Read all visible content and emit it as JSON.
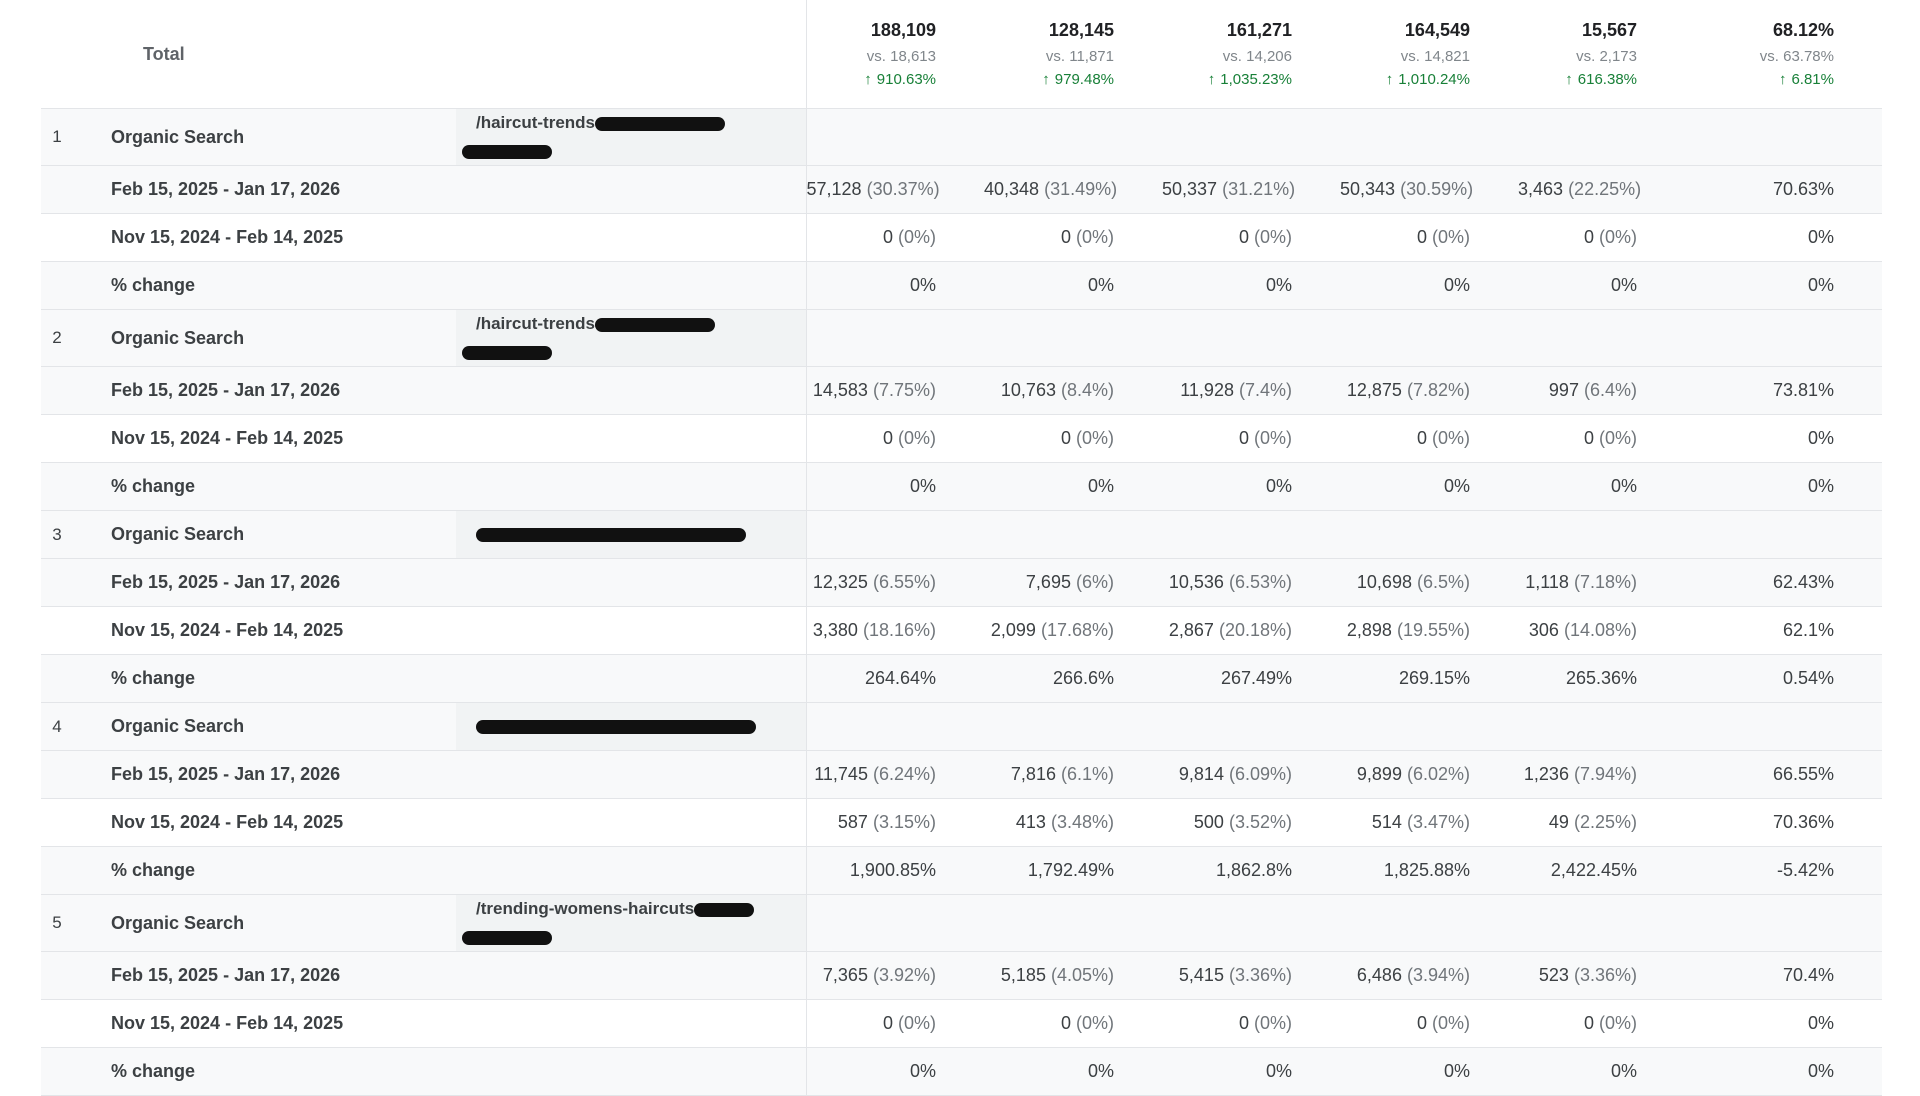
{
  "total": {
    "label": "Total",
    "columns": [
      {
        "value": "188,109",
        "vs": "vs. 18,613",
        "change": "910.63%"
      },
      {
        "value": "128,145",
        "vs": "vs. 11,871",
        "change": "979.48%"
      },
      {
        "value": "161,271",
        "vs": "vs. 14,206",
        "change": "1,035.23%"
      },
      {
        "value": "164,549",
        "vs": "vs. 14,821",
        "change": "1,010.24%"
      },
      {
        "value": "15,567",
        "vs": "vs. 2,173",
        "change": "616.38%"
      },
      {
        "value": "68.12%",
        "vs": "vs. 63.78%",
        "change": "6.81%"
      }
    ]
  },
  "groups": [
    {
      "index": "1",
      "channel": "Organic Search",
      "page": "/haircut-trends",
      "rows": [
        {
          "label": "Feb 15, 2025 - Jan 17, 2026",
          "cells": [
            [
              "57,128",
              "(30.37%)"
            ],
            [
              "40,348",
              "(31.49%)"
            ],
            [
              "50,337",
              "(31.21%)"
            ],
            [
              "50,343",
              "(30.59%)"
            ],
            [
              "3,463",
              "(22.25%)"
            ],
            [
              "70.63%",
              ""
            ]
          ]
        },
        {
          "label": "Nov 15, 2024 - Feb 14, 2025",
          "cells": [
            [
              "0",
              "(0%)"
            ],
            [
              "0",
              "(0%)"
            ],
            [
              "0",
              "(0%)"
            ],
            [
              "0",
              "(0%)"
            ],
            [
              "0",
              "(0%)"
            ],
            [
              "0%",
              ""
            ]
          ]
        },
        {
          "label": "% change",
          "cells": [
            [
              "0%",
              ""
            ],
            [
              "0%",
              ""
            ],
            [
              "0%",
              ""
            ],
            [
              "0%",
              ""
            ],
            [
              "0%",
              ""
            ],
            [
              "0%",
              ""
            ]
          ]
        }
      ]
    },
    {
      "index": "2",
      "channel": "Organic Search",
      "page": "/haircut-trends",
      "rows": [
        {
          "label": "Feb 15, 2025 - Jan 17, 2026",
          "cells": [
            [
              "14,583",
              "(7.75%)"
            ],
            [
              "10,763",
              "(8.4%)"
            ],
            [
              "11,928",
              "(7.4%)"
            ],
            [
              "12,875",
              "(7.82%)"
            ],
            [
              "997",
              "(6.4%)"
            ],
            [
              "73.81%",
              ""
            ]
          ]
        },
        {
          "label": "Nov 15, 2024 - Feb 14, 2025",
          "cells": [
            [
              "0",
              "(0%)"
            ],
            [
              "0",
              "(0%)"
            ],
            [
              "0",
              "(0%)"
            ],
            [
              "0",
              "(0%)"
            ],
            [
              "0",
              "(0%)"
            ],
            [
              "0%",
              ""
            ]
          ]
        },
        {
          "label": "% change",
          "cells": [
            [
              "0%",
              ""
            ],
            [
              "0%",
              ""
            ],
            [
              "0%",
              ""
            ],
            [
              "0%",
              ""
            ],
            [
              "0%",
              ""
            ],
            [
              "0%",
              ""
            ]
          ]
        }
      ]
    },
    {
      "index": "3",
      "channel": "Organic Search",
      "page": "",
      "rows": [
        {
          "label": "Feb 15, 2025 - Jan 17, 2026",
          "cells": [
            [
              "12,325",
              "(6.55%)"
            ],
            [
              "7,695",
              "(6%)"
            ],
            [
              "10,536",
              "(6.53%)"
            ],
            [
              "10,698",
              "(6.5%)"
            ],
            [
              "1,118",
              "(7.18%)"
            ],
            [
              "62.43%",
              ""
            ]
          ]
        },
        {
          "label": "Nov 15, 2024 - Feb 14, 2025",
          "cells": [
            [
              "3,380",
              "(18.16%)"
            ],
            [
              "2,099",
              "(17.68%)"
            ],
            [
              "2,867",
              "(20.18%)"
            ],
            [
              "2,898",
              "(19.55%)"
            ],
            [
              "306",
              "(14.08%)"
            ],
            [
              "62.1%",
              ""
            ]
          ]
        },
        {
          "label": "% change",
          "cells": [
            [
              "264.64%",
              ""
            ],
            [
              "266.6%",
              ""
            ],
            [
              "267.49%",
              ""
            ],
            [
              "269.15%",
              ""
            ],
            [
              "265.36%",
              ""
            ],
            [
              "0.54%",
              ""
            ]
          ]
        }
      ]
    },
    {
      "index": "4",
      "channel": "Organic Search",
      "page": "",
      "rows": [
        {
          "label": "Feb 15, 2025 - Jan 17, 2026",
          "cells": [
            [
              "11,745",
              "(6.24%)"
            ],
            [
              "7,816",
              "(6.1%)"
            ],
            [
              "9,814",
              "(6.09%)"
            ],
            [
              "9,899",
              "(6.02%)"
            ],
            [
              "1,236",
              "(7.94%)"
            ],
            [
              "66.55%",
              ""
            ]
          ]
        },
        {
          "label": "Nov 15, 2024 - Feb 14, 2025",
          "cells": [
            [
              "587",
              "(3.15%)"
            ],
            [
              "413",
              "(3.48%)"
            ],
            [
              "500",
              "(3.52%)"
            ],
            [
              "514",
              "(3.47%)"
            ],
            [
              "49",
              "(2.25%)"
            ],
            [
              "70.36%",
              ""
            ]
          ]
        },
        {
          "label": "% change",
          "cells": [
            [
              "1,900.85%",
              ""
            ],
            [
              "1,792.49%",
              ""
            ],
            [
              "1,862.8%",
              ""
            ],
            [
              "1,825.88%",
              ""
            ],
            [
              "2,422.45%",
              ""
            ],
            [
              "-5.42%",
              ""
            ]
          ]
        }
      ]
    },
    {
      "index": "5",
      "channel": "Organic Search",
      "page": "/trending-womens-haircuts",
      "rows": [
        {
          "label": "Feb 15, 2025 - Jan 17, 2026",
          "cells": [
            [
              "7,365",
              "(3.92%)"
            ],
            [
              "5,185",
              "(4.05%)"
            ],
            [
              "5,415",
              "(3.36%)"
            ],
            [
              "6,486",
              "(3.94%)"
            ],
            [
              "523",
              "(3.36%)"
            ],
            [
              "70.4%",
              ""
            ]
          ]
        },
        {
          "label": "Nov 15, 2024 - Feb 14, 2025",
          "cells": [
            [
              "0",
              "(0%)"
            ],
            [
              "0",
              "(0%)"
            ],
            [
              "0",
              "(0%)"
            ],
            [
              "0",
              "(0%)"
            ],
            [
              "0",
              "(0%)"
            ],
            [
              "0%",
              ""
            ]
          ]
        },
        {
          "label": "% change",
          "cells": [
            [
              "0%",
              ""
            ],
            [
              "0%",
              ""
            ],
            [
              "0%",
              ""
            ],
            [
              "0%",
              ""
            ],
            [
              "0%",
              ""
            ],
            [
              "0%",
              ""
            ]
          ]
        }
      ]
    }
  ],
  "colors": {
    "positive": "#188038",
    "row_shade": "#f8f9fa",
    "page_cell": "#f1f3f4",
    "border": "#e3e5e8"
  }
}
